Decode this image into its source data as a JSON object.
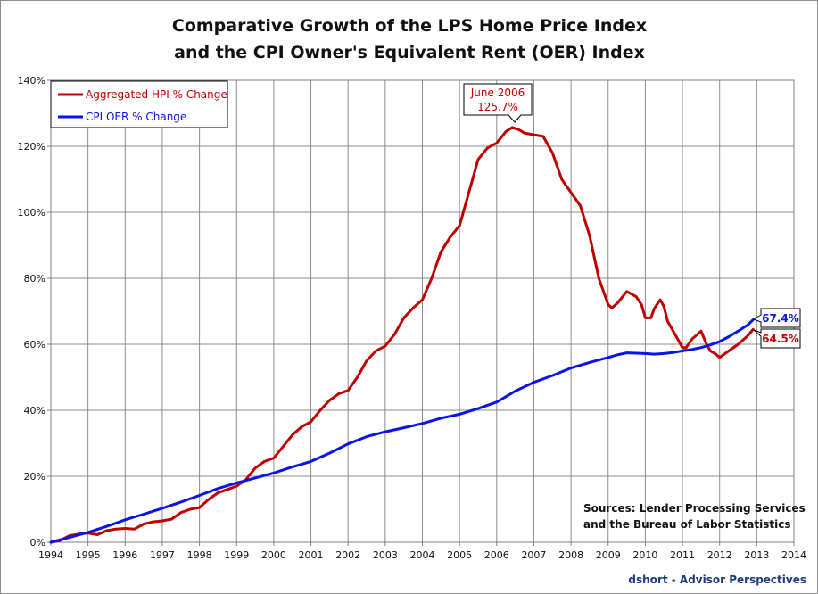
{
  "chart_data": {
    "type": "line",
    "title": [
      "Comparative Growth of the LPS Home Price Index",
      "and the CPI Owner's Equivalent Rent (OER) Index"
    ],
    "x_ticks": [
      "1994",
      "1995",
      "1996",
      "1997",
      "1998",
      "1999",
      "2000",
      "2001",
      "2002",
      "2003",
      "2004",
      "2005",
      "2006",
      "2007",
      "2008",
      "2009",
      "2010",
      "2011",
      "2012",
      "2013",
      "2014"
    ],
    "y_ticks": [
      "0%",
      "20%",
      "40%",
      "60%",
      "80%",
      "100%",
      "120%",
      "140%"
    ],
    "xlim": [
      1994,
      2014
    ],
    "ylim": [
      0,
      140
    ],
    "grid": true,
    "legend_position": "top-left",
    "series": [
      {
        "name": "Aggregated HPI % Change",
        "color": "#c00000",
        "x": [
          1994.0,
          1994.25,
          1994.5,
          1994.75,
          1995.0,
          1995.25,
          1995.5,
          1995.75,
          1996.0,
          1996.25,
          1996.5,
          1996.75,
          1997.0,
          1997.25,
          1997.5,
          1997.75,
          1998.0,
          1998.25,
          1998.5,
          1998.75,
          1999.0,
          1999.25,
          1999.5,
          1999.75,
          2000.0,
          2000.25,
          2000.5,
          2000.75,
          2001.0,
          2001.25,
          2001.5,
          2001.75,
          2002.0,
          2002.25,
          2002.5,
          2002.75,
          2003.0,
          2003.25,
          2003.5,
          2003.75,
          2004.0,
          2004.25,
          2004.5,
          2004.75,
          2005.0,
          2005.25,
          2005.5,
          2005.75,
          2006.0,
          2006.25,
          2006.42,
          2006.6,
          2006.75,
          2007.0,
          2007.25,
          2007.5,
          2007.75,
          2008.0,
          2008.25,
          2008.5,
          2008.75,
          2009.0,
          2009.1,
          2009.25,
          2009.5,
          2009.75,
          2009.9,
          2010.0,
          2010.15,
          2010.25,
          2010.4,
          2010.5,
          2010.6,
          2010.75,
          2011.0,
          2011.1,
          2011.25,
          2011.5,
          2011.65,
          2011.75,
          2011.9,
          2012.0,
          2012.25,
          2012.5,
          2012.75,
          2012.9
        ],
        "values": [
          0.0,
          0.5,
          2.0,
          2.5,
          2.8,
          2.3,
          3.5,
          4.0,
          4.2,
          4.0,
          5.5,
          6.2,
          6.5,
          7.0,
          9.0,
          10.0,
          10.5,
          13.0,
          15.0,
          16.0,
          17.0,
          19.0,
          22.5,
          24.5,
          25.5,
          29.0,
          32.5,
          35.0,
          36.5,
          40.0,
          43.0,
          45.0,
          46.0,
          50.0,
          55.0,
          58.0,
          59.5,
          63.0,
          68.0,
          71.0,
          73.5,
          80.0,
          88.0,
          92.5,
          96.0,
          106.0,
          116.0,
          119.5,
          121.0,
          124.5,
          125.7,
          125.0,
          124.0,
          123.5,
          123.0,
          118.0,
          110.0,
          106.0,
          102.0,
          93.0,
          80.0,
          72.0,
          71.0,
          72.5,
          76.0,
          74.5,
          72.0,
          68.0,
          68.0,
          71.0,
          73.5,
          71.5,
          67.0,
          64.0,
          59.0,
          59.0,
          61.5,
          64.0,
          60.0,
          58.0,
          57.0,
          56.0,
          58.0,
          60.0,
          62.5,
          64.5
        ]
      },
      {
        "name": "CPI OER % Change",
        "color": "#0a14e6",
        "x": [
          1994.0,
          1994.5,
          1995.0,
          1995.5,
          1996.0,
          1996.5,
          1997.0,
          1997.5,
          1998.0,
          1998.5,
          1999.0,
          1999.5,
          2000.0,
          2000.5,
          2001.0,
          2001.5,
          2002.0,
          2002.5,
          2003.0,
          2003.5,
          2004.0,
          2004.5,
          2005.0,
          2005.5,
          2006.0,
          2006.5,
          2007.0,
          2007.5,
          2008.0,
          2008.5,
          2009.0,
          2009.25,
          2009.5,
          2009.75,
          2010.0,
          2010.25,
          2010.5,
          2010.75,
          2011.0,
          2011.25,
          2011.5,
          2011.75,
          2012.0,
          2012.25,
          2012.5,
          2012.75,
          2012.9
        ],
        "values": [
          0.0,
          1.5,
          3.0,
          4.8,
          6.8,
          8.5,
          10.3,
          12.2,
          14.2,
          16.3,
          18.0,
          19.5,
          21.0,
          22.8,
          24.5,
          27.0,
          29.8,
          32.0,
          33.5,
          34.7,
          36.0,
          37.6,
          38.8,
          40.5,
          42.5,
          45.8,
          48.5,
          50.5,
          52.8,
          54.5,
          56.0,
          56.8,
          57.4,
          57.3,
          57.2,
          57.0,
          57.2,
          57.5,
          58.0,
          58.4,
          59.0,
          59.8,
          60.8,
          62.3,
          64.0,
          65.8,
          67.4
        ]
      }
    ],
    "annotations": {
      "peak": {
        "x": 2006.42,
        "y": 125.7,
        "lines": [
          "June 2006",
          "125.7%"
        ]
      },
      "hpi_end": {
        "x": 2012.9,
        "y": 64.5,
        "text": "64.5%"
      },
      "oer_end": {
        "x": 2012.9,
        "y": 67.4,
        "text": "67.4%"
      },
      "sources": [
        "Sources: Lender Processing Services",
        "and the Bureau of Labor Statistics"
      ],
      "credit": "dshort - Advisor Perspectives"
    }
  }
}
